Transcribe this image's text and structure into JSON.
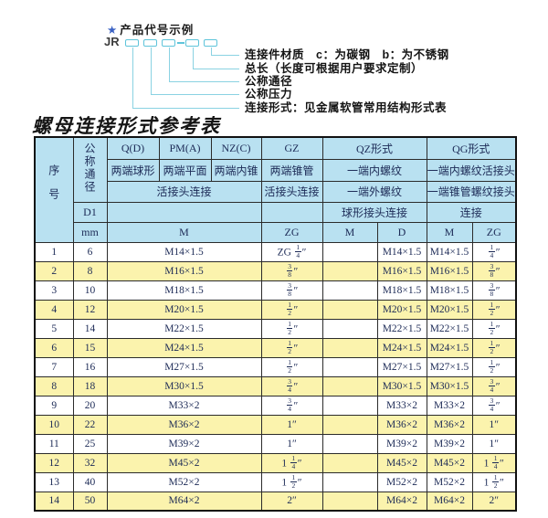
{
  "diagram": {
    "star": "★",
    "example_label": "产品代号示例",
    "code_prefix": "JR",
    "code_separator": "-",
    "callouts": [
      "连接件材质　c：为碳钢　b：为不锈钢",
      "总长（长度可根据用户要求定制）",
      "公称通径",
      "公称压力",
      "连接形式：见金属软管常用结构形式表"
    ]
  },
  "table_title": "螺母连接形式参考表",
  "table": {
    "header": {
      "xuhao": "序号",
      "gongcheng_tongjing": "公称通径",
      "d1": "D1",
      "mm": "mm",
      "q": "Q(D)",
      "q_sub": "两端球形",
      "pm": "PM(A)",
      "pm_sub": "两端平面",
      "nz": "NZ(C)",
      "nz_sub": "两端内锥",
      "left_conn": "活接头连接",
      "left_m": "M",
      "gz": "GZ",
      "gz_sub": "两端锥管",
      "gz_conn": "活接头连接",
      "gz_zg": "ZG",
      "qz": "QZ形式",
      "qz_sub1": "一端内螺纹",
      "qz_sub2": "一端外螺纹",
      "qz_conn": "球形接头连接",
      "qz_m": "M",
      "qz_d": "D",
      "qg": "QG形式",
      "qg_sub1": "一端内螺纹活接头",
      "qg_sub2": "一端锥管螺纹接头",
      "qg_conn": "连接",
      "qg_m": "M",
      "qg_zg": "ZG"
    },
    "rows": [
      {
        "no": "1",
        "dn": "6",
        "m": "M14×1.5",
        "gz": "ZG 1/4″",
        "qz_m": "",
        "qz_d": "M14×1.5",
        "qg_m": "M14×1.5",
        "qg_zg": "1/4″"
      },
      {
        "no": "2",
        "dn": "8",
        "m": "M16×1.5",
        "gz": "3/8″",
        "qz_m": "",
        "qz_d": "M16×1.5",
        "qg_m": "M16×1.5",
        "qg_zg": "3/8″"
      },
      {
        "no": "3",
        "dn": "10",
        "m": "M18×1.5",
        "gz": "3/8″",
        "qz_m": "",
        "qz_d": "M18×1.5",
        "qg_m": "M18×1.5",
        "qg_zg": "3/8″"
      },
      {
        "no": "4",
        "dn": "12",
        "m": "M20×1.5",
        "gz": "1/2″",
        "qz_m": "",
        "qz_d": "M20×1.5",
        "qg_m": "M20×1.5",
        "qg_zg": "1/2″"
      },
      {
        "no": "5",
        "dn": "14",
        "m": "M22×1.5",
        "gz": "1/2″",
        "qz_m": "",
        "qz_d": "M22×1.5",
        "qg_m": "M22×1.5",
        "qg_zg": "1/2″"
      },
      {
        "no": "6",
        "dn": "15",
        "m": "M24×1.5",
        "gz": "1/2″",
        "qz_m": "",
        "qz_d": "M24×1.5",
        "qg_m": "M24×1.5",
        "qg_zg": "1/2″"
      },
      {
        "no": "7",
        "dn": "16",
        "m": "M27×1.5",
        "gz": "1/2″",
        "qz_m": "",
        "qz_d": "M27×1.5",
        "qg_m": "M27×1.5",
        "qg_zg": "1/2″"
      },
      {
        "no": "8",
        "dn": "18",
        "m": "M30×1.5",
        "gz": "3/4″",
        "qz_m": "",
        "qz_d": "M30×1.5",
        "qg_m": "M30×1.5",
        "qg_zg": "3/4″"
      },
      {
        "no": "9",
        "dn": "20",
        "m": "M33×2",
        "gz": "3/4″",
        "qz_m": "",
        "qz_d": "M33×2",
        "qg_m": "M33×2",
        "qg_zg": "3/4″"
      },
      {
        "no": "10",
        "dn": "22",
        "m": "M36×2",
        "gz": "1″",
        "qz_m": "",
        "qz_d": "M36×2",
        "qg_m": "M36×2",
        "qg_zg": "1″"
      },
      {
        "no": "11",
        "dn": "25",
        "m": "M39×2",
        "gz": "1″",
        "qz_m": "",
        "qz_d": "M39×2",
        "qg_m": "M39×2",
        "qg_zg": "1″"
      },
      {
        "no": "12",
        "dn": "32",
        "m": "M45×2",
        "gz": "1 1/4″",
        "qz_m": "",
        "qz_d": "M45×2",
        "qg_m": "M45×2",
        "qg_zg": "1 1/4″"
      },
      {
        "no": "13",
        "dn": "40",
        "m": "M52×2",
        "gz": "1 1/2″",
        "qz_m": "",
        "qz_d": "M52×2",
        "qg_m": "M52×2",
        "qg_zg": "1 1/2″"
      },
      {
        "no": "14",
        "dn": "50",
        "m": "M64×2",
        "gz": "2″",
        "qz_m": "",
        "qz_d": "M64×2",
        "qg_m": "M64×2",
        "qg_zg": "2″"
      }
    ]
  },
  "colors": {
    "header_bg": "#b9e1f1",
    "row_alt_bg": "#fbf3ad",
    "diagram_line": "#8ad2e2",
    "code_box_border": "#5ec4da",
    "star": "#3b62c4",
    "table_text": "#1c2a56"
  }
}
